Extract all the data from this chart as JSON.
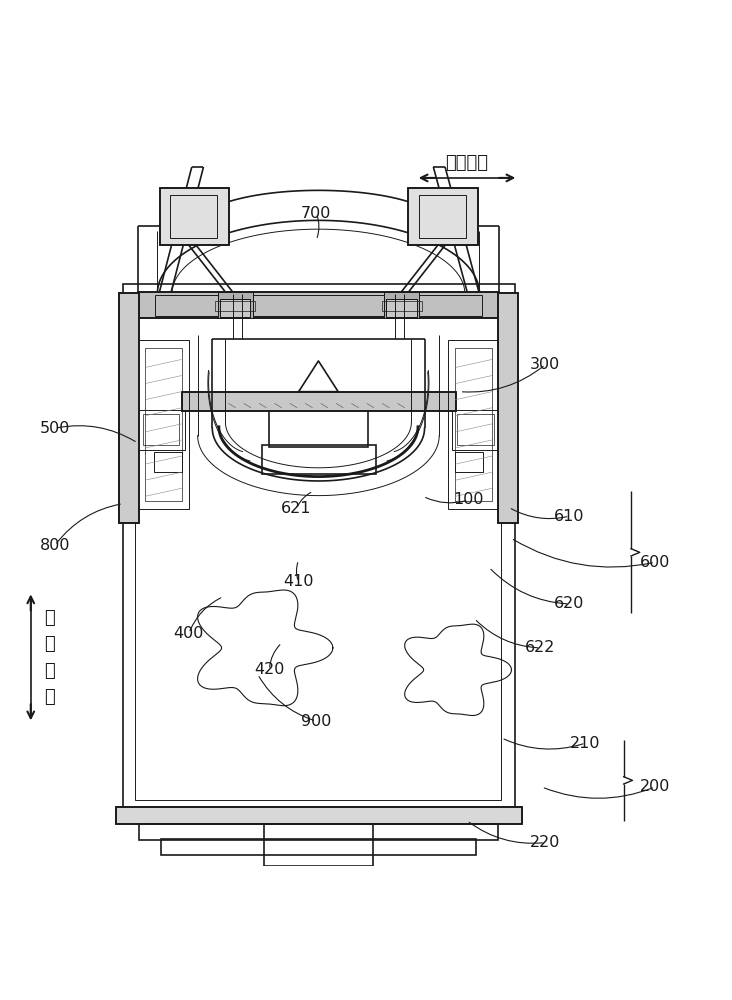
{
  "bg_color": "#ffffff",
  "line_color": "#1a1a1a",
  "dir1_label": "第\n一\n方\n向",
  "dir2_label": "第二方向",
  "labels_info": {
    "100": [
      0.64,
      0.5,
      0.578,
      0.505
    ],
    "200": [
      0.895,
      0.108,
      0.74,
      0.108
    ],
    "210": [
      0.8,
      0.168,
      0.685,
      0.175
    ],
    "220": [
      0.745,
      0.032,
      0.638,
      0.062
    ],
    "300": [
      0.745,
      0.685,
      0.628,
      0.648
    ],
    "400": [
      0.258,
      0.318,
      0.305,
      0.368
    ],
    "410": [
      0.408,
      0.388,
      0.408,
      0.418
    ],
    "420": [
      0.368,
      0.268,
      0.385,
      0.305
    ],
    "500": [
      0.075,
      0.598,
      0.188,
      0.578
    ],
    "600": [
      0.895,
      0.415,
      0.698,
      0.448
    ],
    "610": [
      0.778,
      0.478,
      0.695,
      0.49
    ],
    "620": [
      0.778,
      0.358,
      0.668,
      0.408
    ],
    "621": [
      0.405,
      0.488,
      0.428,
      0.512
    ],
    "622": [
      0.738,
      0.298,
      0.648,
      0.338
    ],
    "700": [
      0.432,
      0.892,
      0.432,
      0.855
    ],
    "800": [
      0.075,
      0.438,
      0.168,
      0.495
    ],
    "900": [
      0.432,
      0.198,
      0.352,
      0.262
    ]
  }
}
